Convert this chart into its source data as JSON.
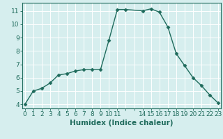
{
  "x": [
    0,
    1,
    2,
    3,
    4,
    5,
    6,
    7,
    8,
    9,
    10,
    11,
    12,
    14,
    15,
    16,
    17,
    18,
    19,
    20,
    21,
    22,
    23
  ],
  "y": [
    4,
    5,
    5.2,
    5.6,
    6.2,
    6.3,
    6.5,
    6.6,
    6.6,
    6.6,
    8.8,
    11.1,
    11.1,
    11.0,
    11.15,
    10.9,
    9.8,
    7.8,
    6.9,
    6.0,
    5.4,
    4.7,
    4.1
  ],
  "line_color": "#1f6b5c",
  "marker": "D",
  "marker_size": 2.5,
  "bg_color": "#d6eeee",
  "grid_color": "#b8d8d8",
  "xlabel": "Humidex (Indice chaleur)",
  "xlabel_fontsize": 7.5,
  "xticks": [
    0,
    1,
    2,
    3,
    4,
    5,
    6,
    7,
    8,
    9,
    10,
    11,
    12,
    13,
    14,
    15,
    16,
    17,
    18,
    19,
    20,
    21,
    22,
    23
  ],
  "xtick_labels": [
    "0",
    "1",
    "2",
    "3",
    "4",
    "5",
    "6",
    "7",
    "8",
    "9",
    "10",
    "11",
    "",
    "",
    "14",
    "15",
    "16",
    "17",
    "18",
    "19",
    "20",
    "21",
    "22",
    "23"
  ],
  "yticks": [
    4,
    5,
    6,
    7,
    8,
    9,
    10,
    11
  ],
  "ylim": [
    3.7,
    11.6
  ],
  "xlim": [
    -0.3,
    23.3
  ],
  "tick_fontsize": 6.5,
  "linewidth": 1.0
}
